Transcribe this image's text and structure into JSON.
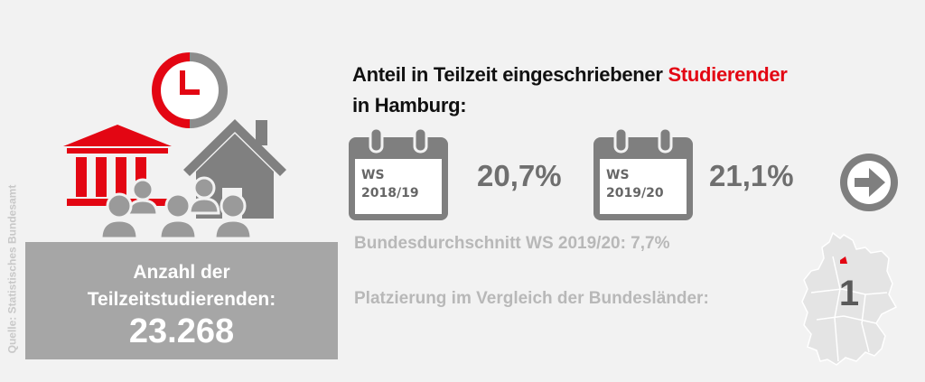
{
  "source": "Quelle: Statistisches Bundesamt",
  "count_box": {
    "label_line1": "Anzahl der",
    "label_line2": "Teilzeitstudierenden:",
    "value": "23.268"
  },
  "title": {
    "part1": "Anteil in Teilzeit eingeschriebener ",
    "highlight": "Studierender",
    "line2": "in Hamburg:"
  },
  "semesters": [
    {
      "line1": "WS",
      "line2": "2018/19",
      "percent": "20,7%"
    },
    {
      "line1": "WS",
      "line2": "2019/20",
      "percent": "21,1%"
    }
  ],
  "national_average": "Bundesdurchschnitt WS 2019/20: 7,7%",
  "ranking": {
    "label": "Platzierung im Vergleich der Bundesländer:",
    "value": "1"
  },
  "colors": {
    "accent_red": "#e30613",
    "icon_gray": "#808080",
    "light_gray": "#a6a6a6"
  },
  "icons": [
    "clock-icon",
    "university-building-icon",
    "house-icon",
    "people-group-icon",
    "calendar-icon",
    "arrow-right-circle-icon",
    "germany-map-icon"
  ]
}
